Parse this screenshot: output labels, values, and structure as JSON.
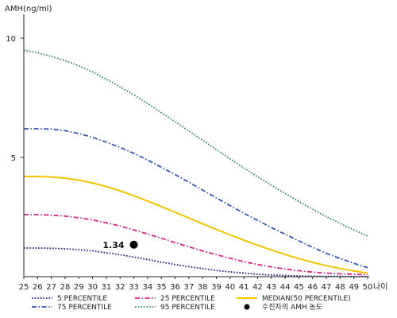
{
  "chart_data": {
    "type": "line",
    "ylabel": "AMH(ng/ml)",
    "xlabel": "나이",
    "x": [
      25,
      26,
      27,
      28,
      29,
      30,
      31,
      32,
      33,
      34,
      35,
      36,
      37,
      38,
      39,
      40,
      41,
      42,
      43,
      44,
      45,
      46,
      47,
      48,
      49,
      50
    ],
    "xlim": [
      25,
      50
    ],
    "ylim": [
      0,
      11
    ],
    "yticks": [
      5,
      10
    ],
    "grid": false,
    "legend_position": "bottom",
    "series": [
      {
        "name": "5 PERCENTILE",
        "color": "#1a1a8c",
        "dash": "dotted",
        "values": [
          1.2,
          1.2,
          1.19,
          1.17,
          1.13,
          1.08,
          1.0,
          0.92,
          0.82,
          0.72,
          0.61,
          0.51,
          0.42,
          0.34,
          0.26,
          0.2,
          0.15,
          0.1,
          0.07,
          0.05,
          0.03,
          0.02,
          0.01,
          0.01,
          0.0,
          0.0
        ]
      },
      {
        "name": "25 PERCENTILE",
        "color": "#e0218a",
        "dash": "dashdot",
        "values": [
          2.6,
          2.6,
          2.58,
          2.54,
          2.47,
          2.38,
          2.26,
          2.12,
          1.96,
          1.79,
          1.61,
          1.43,
          1.25,
          1.08,
          0.92,
          0.77,
          0.63,
          0.51,
          0.41,
          0.32,
          0.25,
          0.19,
          0.15,
          0.12,
          0.1,
          0.08
        ]
      },
      {
        "name": "75 PERCENTILE",
        "color": "#3355bb",
        "dash": "dashdot",
        "values": [
          6.2,
          6.2,
          6.19,
          6.12,
          6.0,
          5.84,
          5.64,
          5.42,
          5.17,
          4.89,
          4.59,
          4.28,
          3.96,
          3.63,
          3.3,
          2.98,
          2.66,
          2.36,
          2.06,
          1.78,
          1.5,
          1.23,
          0.98,
          0.76,
          0.56,
          0.38
        ]
      },
      {
        "name": "95 PERCENTILE",
        "color": "#2e8b57",
        "dash": "dotted",
        "values": [
          9.5,
          9.38,
          9.24,
          9.06,
          8.84,
          8.58,
          8.28,
          7.96,
          7.62,
          7.26,
          6.88,
          6.5,
          6.11,
          5.72,
          5.33,
          4.94,
          4.56,
          4.19,
          3.83,
          3.49,
          3.15,
          2.83,
          2.52,
          2.23,
          1.96,
          1.7
        ]
      },
      {
        "name": "MEDIAN(50 PERCENTILE)",
        "color": "#f5c400",
        "dash": "solid",
        "values": [
          4.2,
          4.2,
          4.18,
          4.13,
          4.05,
          3.93,
          3.78,
          3.6,
          3.39,
          3.17,
          2.94,
          2.7,
          2.46,
          2.22,
          1.98,
          1.75,
          1.53,
          1.32,
          1.12,
          0.93,
          0.76,
          0.6,
          0.46,
          0.34,
          0.24,
          0.15
        ]
      }
    ],
    "points": [
      {
        "name": "수진자의 AMH 농도",
        "x": 33,
        "y": 1.34,
        "label": "1.34",
        "color": "#000000"
      }
    ]
  }
}
